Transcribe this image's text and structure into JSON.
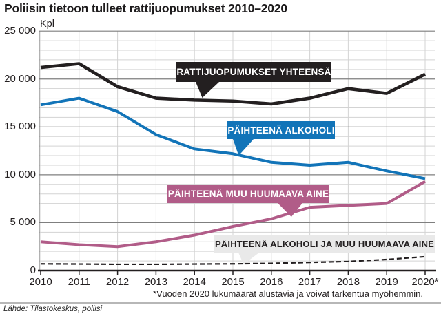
{
  "header": {
    "title": "Poliisin tietoon tulleet rattijuopumukset 2010–2020"
  },
  "chart": {
    "unit_label": "Kpl",
    "footnote": "*Vuoden 2020 lukumäärät alustavia ja voivat tarkentua myöhemmin.",
    "source": "Lähde: Tilastokeskus, poliisi"
  },
  "chart_data": {
    "type": "line",
    "x": [
      "2010",
      "2011",
      "2012",
      "2013",
      "2014",
      "2015",
      "2016",
      "2017",
      "2018",
      "2019",
      "2020*"
    ],
    "series": [
      {
        "name": "RATTIJUOPUMUKSET YHTEENSÄ",
        "color": "#231f20",
        "style": "solid",
        "values": [
          21200,
          21600,
          19200,
          18000,
          17800,
          17700,
          17400,
          18000,
          19000,
          18500,
          20500
        ]
      },
      {
        "name": "PÄIHTEENÄ ALKOHOLI",
        "color": "#1274b8",
        "style": "solid",
        "values": [
          17300,
          18000,
          16600,
          14200,
          12700,
          12200,
          11300,
          11000,
          11300,
          10400,
          9600
        ]
      },
      {
        "name": "PÄIHTEENÄ MUU HUUMAAVA AINE",
        "color": "#b15c88",
        "style": "solid",
        "values": [
          3000,
          2700,
          2500,
          3000,
          3700,
          4600,
          5400,
          6600,
          6800,
          7000,
          9300
        ]
      },
      {
        "name": "PÄIHTEENÄ ALKOHOLI JA MUU HUUMAAVA AINE",
        "color": "#231f20",
        "style": "dashed",
        "values": [
          700,
          680,
          650,
          650,
          680,
          700,
          750,
          850,
          950,
          1150,
          1450
        ]
      }
    ],
    "title": "Poliisin tietoon tulleet rattijuopumukset 2010–2020",
    "xlabel": "",
    "ylabel": "Kpl",
    "ylim": [
      0,
      25000
    ],
    "yticks": {
      "values": [
        0,
        5000,
        10000,
        15000,
        20000,
        25000
      ],
      "labels": [
        "0",
        "5 000",
        "10 000",
        "15 000",
        "20 000",
        "25 000"
      ]
    },
    "minor_grid_step": 1000,
    "major_grid_step": 5000,
    "grid": true,
    "legend_position": "callout-labels-on-plot"
  },
  "callouts": [
    {
      "series": 0,
      "bg": "#231f20",
      "fg": "#ffffff"
    },
    {
      "series": 1,
      "bg": "#1274b8",
      "fg": "#ffffff"
    },
    {
      "series": 2,
      "bg": "#b15c88",
      "fg": "#ffffff"
    },
    {
      "series": 3,
      "bg": "#e9e9e9",
      "fg": "#231f20"
    }
  ]
}
